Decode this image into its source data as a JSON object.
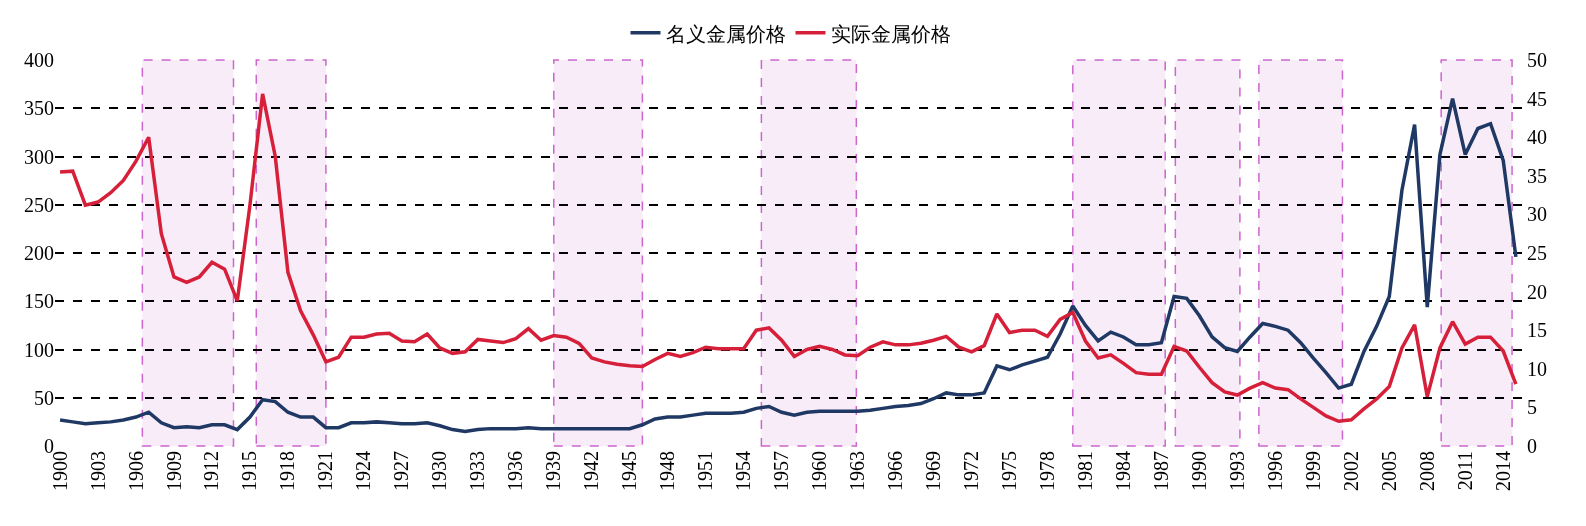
{
  "chart_data": {
    "type": "line",
    "x": [
      1900,
      1901,
      1902,
      1903,
      1904,
      1905,
      1906,
      1907,
      1908,
      1909,
      1910,
      1911,
      1912,
      1913,
      1914,
      1915,
      1916,
      1917,
      1918,
      1919,
      1920,
      1921,
      1922,
      1923,
      1924,
      1925,
      1926,
      1927,
      1928,
      1929,
      1930,
      1931,
      1932,
      1933,
      1934,
      1935,
      1936,
      1937,
      1938,
      1939,
      1940,
      1941,
      1942,
      1943,
      1944,
      1945,
      1946,
      1947,
      1948,
      1949,
      1950,
      1951,
      1952,
      1953,
      1954,
      1955,
      1956,
      1957,
      1958,
      1959,
      1960,
      1961,
      1962,
      1963,
      1964,
      1965,
      1966,
      1967,
      1968,
      1969,
      1970,
      1971,
      1972,
      1973,
      1974,
      1975,
      1976,
      1977,
      1978,
      1979,
      1980,
      1981,
      1982,
      1983,
      1984,
      1985,
      1986,
      1987,
      1988,
      1989,
      1990,
      1991,
      1992,
      1993,
      1994,
      1995,
      1996,
      1997,
      1998,
      1999,
      2000,
      2001,
      2002,
      2003,
      2004,
      2005,
      2006,
      2007,
      2008,
      2009,
      2010,
      2011,
      2012,
      2013,
      2014,
      2015
    ],
    "series": [
      {
        "name": "名义金属价格",
        "color": "#1f3864",
        "values": [
          27,
          25,
          23,
          24,
          25,
          27,
          30,
          35,
          24,
          19,
          20,
          19,
          22,
          22,
          17,
          30,
          48,
          46,
          35,
          30,
          30,
          19,
          19,
          24,
          24,
          25,
          24,
          23,
          23,
          24,
          21,
          17,
          15,
          17,
          18,
          18,
          18,
          19,
          18,
          18,
          18,
          18,
          18,
          18,
          18,
          18,
          22,
          28,
          30,
          30,
          32,
          34,
          34,
          34,
          35,
          39,
          41,
          35,
          32,
          35,
          36,
          36,
          36,
          36,
          37,
          39,
          41,
          42,
          44,
          49,
          55,
          53,
          53,
          55,
          83,
          79,
          84,
          88,
          92,
          116,
          145,
          125,
          109,
          118,
          113,
          105,
          105,
          107,
          155,
          153,
          135,
          113,
          102,
          98,
          113,
          127,
          124,
          120,
          107,
          91,
          76,
          60,
          64,
          98,
          124,
          155,
          265,
          333,
          144,
          302,
          360,
          302,
          329,
          334,
          296,
          196
        ]
      },
      {
        "name": "实际金属价格",
        "color": "#d6203a",
        "axis": "y2",
        "values": [
          35.5,
          35.6,
          31.2,
          31.6,
          32.8,
          34.4,
          36.9,
          40,
          27.5,
          21.9,
          21.2,
          21.9,
          23.8,
          22.9,
          18.8,
          31.2,
          45.6,
          37.5,
          22.5,
          17.5,
          14.4,
          10.9,
          11.5,
          14.1,
          14.1,
          14.5,
          14.6,
          13.6,
          13.5,
          14.5,
          12.7,
          12,
          12.2,
          13.8,
          13.6,
          13.4,
          13.9,
          15.2,
          13.7,
          14.3,
          14.1,
          13.3,
          11.4,
          10.9,
          10.6,
          10.4,
          10.3,
          11.2,
          12,
          11.6,
          12.1,
          12.8,
          12.6,
          12.6,
          12.6,
          15,
          15.3,
          13.7,
          11.6,
          12.5,
          12.9,
          12.5,
          11.8,
          11.7,
          12.8,
          13.5,
          13.1,
          13.1,
          13.3,
          13.7,
          14.2,
          12.8,
          12.2,
          13,
          17.1,
          14.7,
          15,
          15,
          14.2,
          16.4,
          17.3,
          13.6,
          11.4,
          11.8,
          10.7,
          9.5,
          9.3,
          9.3,
          12.9,
          12.3,
          10.2,
          8.2,
          7,
          6.6,
          7.5,
          8.2,
          7.5,
          7.3,
          6.1,
          5,
          3.9,
          3.2,
          3.4,
          4.8,
          6.1,
          7.7,
          12.7,
          15.7,
          6.4,
          12.7,
          16.1,
          13.2,
          14.1,
          14.1,
          12.3,
          8
        ]
      }
    ],
    "xlim": [
      1899.6,
      2015.8
    ],
    "xticks": [
      1900,
      1903,
      1906,
      1909,
      1912,
      1915,
      1918,
      1921,
      1924,
      1927,
      1930,
      1933,
      1936,
      1939,
      1942,
      1945,
      1948,
      1951,
      1954,
      1957,
      1960,
      1963,
      1966,
      1969,
      1972,
      1975,
      1978,
      1981,
      1984,
      1987,
      1990,
      1993,
      1996,
      1999,
      2002,
      2005,
      2008,
      2011,
      2014
    ],
    "ylim": [
      0,
      400
    ],
    "yticks": [
      0,
      50,
      100,
      150,
      200,
      250,
      300,
      350,
      400
    ],
    "y2lim": [
      0,
      50
    ],
    "y2ticks": [
      0,
      5,
      10,
      15,
      20,
      25,
      30,
      35,
      40,
      45,
      50
    ],
    "bands": [
      {
        "axis": "x",
        "from": 1906.5,
        "to": 1913.7,
        "color": "#cc66cc"
      },
      {
        "axis": "x",
        "from": 1915.5,
        "to": 1921,
        "color": "#cc66cc"
      },
      {
        "axis": "x",
        "from": 1939,
        "to": 1946,
        "color": "#cc66cc"
      },
      {
        "axis": "x",
        "from": 1955.4,
        "to": 1962.9,
        "color": "#cc66cc"
      },
      {
        "axis": "x",
        "from": 1980,
        "to": 1987.3,
        "color": "#cc66cc"
      },
      {
        "axis": "x",
        "from": 1988.1,
        "to": 1993.2,
        "color": "#cc66cc"
      },
      {
        "axis": "x",
        "from": 1994.7,
        "to": 2001.3,
        "color": "#cc66cc"
      },
      {
        "axis": "x",
        "from": 2009.1,
        "to": 2014.7,
        "color": "#cc66cc"
      }
    ],
    "grid": "y",
    "legend": "top",
    "line_style": "solid"
  }
}
